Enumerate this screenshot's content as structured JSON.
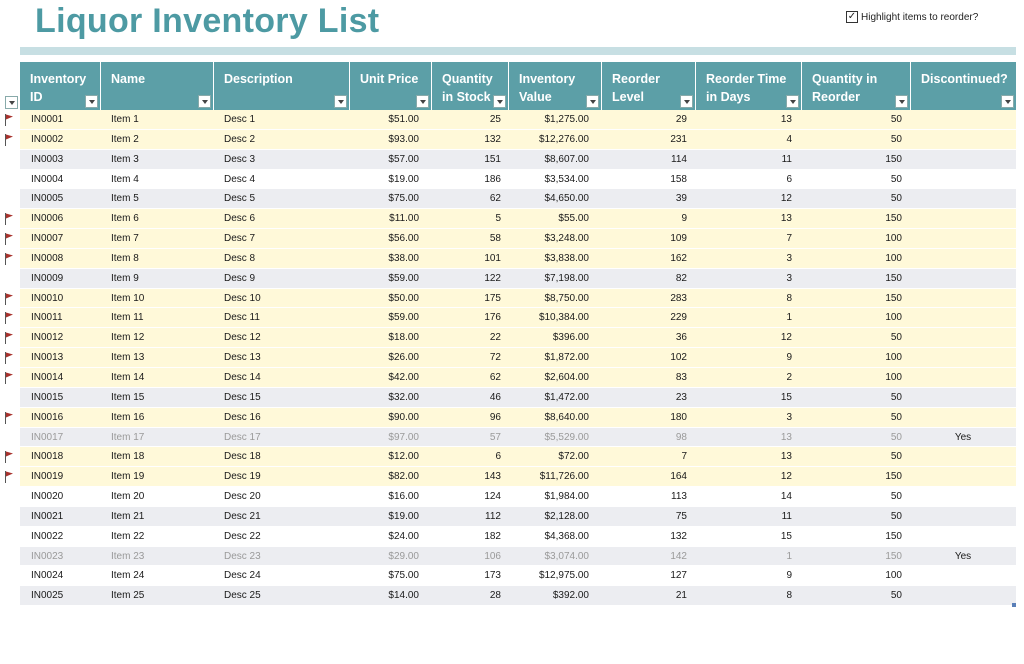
{
  "title": "Liquor Inventory List",
  "highlight": {
    "label": "Highlight items to reorder?",
    "checked": true
  },
  "columns": [
    {
      "key": "id",
      "label": "Inventory ID",
      "lines": [
        "Inventory",
        "ID"
      ]
    },
    {
      "key": "name",
      "label": "Name",
      "lines": [
        "Name"
      ]
    },
    {
      "key": "desc",
      "label": "Description",
      "lines": [
        "Description"
      ]
    },
    {
      "key": "price",
      "label": "Unit Price",
      "lines": [
        "Unit Price"
      ]
    },
    {
      "key": "qty",
      "label": "Quantity in Stock",
      "lines": [
        "Quantity",
        "in Stock"
      ]
    },
    {
      "key": "value",
      "label": "Inventory Value",
      "lines": [
        "Inventory",
        "Value"
      ]
    },
    {
      "key": "reorder",
      "label": "Reorder Level",
      "lines": [
        "Reorder",
        "Level"
      ]
    },
    {
      "key": "days",
      "label": "Reorder Time in Days",
      "lines": [
        "Reorder Time",
        "in Days"
      ]
    },
    {
      "key": "reorder_qty",
      "label": "Quantity in Reorder",
      "lines": [
        "Quantity in",
        "Reorder"
      ]
    },
    {
      "key": "disc",
      "label": "Discontinued?",
      "lines": [
        "Discontinued?"
      ]
    }
  ],
  "rows": [
    {
      "flag": true,
      "disc": false,
      "id": "IN0001",
      "name": "Item 1",
      "desc": "Desc 1",
      "price": "$51.00",
      "qty": "25",
      "value": "$1,275.00",
      "reorder": "29",
      "days": "13",
      "reorder_qty": "50",
      "discontinued": ""
    },
    {
      "flag": true,
      "disc": false,
      "id": "IN0002",
      "name": "Item 2",
      "desc": "Desc 2",
      "price": "$93.00",
      "qty": "132",
      "value": "$12,276.00",
      "reorder": "231",
      "days": "4",
      "reorder_qty": "50",
      "discontinued": ""
    },
    {
      "flag": false,
      "disc": false,
      "id": "IN0003",
      "name": "Item 3",
      "desc": "Desc 3",
      "price": "$57.00",
      "qty": "151",
      "value": "$8,607.00",
      "reorder": "114",
      "days": "11",
      "reorder_qty": "150",
      "discontinued": ""
    },
    {
      "flag": false,
      "disc": false,
      "id": "IN0004",
      "name": "Item 4",
      "desc": "Desc 4",
      "price": "$19.00",
      "qty": "186",
      "value": "$3,534.00",
      "reorder": "158",
      "days": "6",
      "reorder_qty": "50",
      "discontinued": ""
    },
    {
      "flag": false,
      "disc": false,
      "id": "IN0005",
      "name": "Item 5",
      "desc": "Desc 5",
      "price": "$75.00",
      "qty": "62",
      "value": "$4,650.00",
      "reorder": "39",
      "days": "12",
      "reorder_qty": "50",
      "discontinued": ""
    },
    {
      "flag": true,
      "disc": false,
      "id": "IN0006",
      "name": "Item 6",
      "desc": "Desc 6",
      "price": "$11.00",
      "qty": "5",
      "value": "$55.00",
      "reorder": "9",
      "days": "13",
      "reorder_qty": "150",
      "discontinued": ""
    },
    {
      "flag": true,
      "disc": false,
      "id": "IN0007",
      "name": "Item 7",
      "desc": "Desc 7",
      "price": "$56.00",
      "qty": "58",
      "value": "$3,248.00",
      "reorder": "109",
      "days": "7",
      "reorder_qty": "100",
      "discontinued": ""
    },
    {
      "flag": true,
      "disc": false,
      "id": "IN0008",
      "name": "Item 8",
      "desc": "Desc 8",
      "price": "$38.00",
      "qty": "101",
      "value": "$3,838.00",
      "reorder": "162",
      "days": "3",
      "reorder_qty": "100",
      "discontinued": ""
    },
    {
      "flag": false,
      "disc": false,
      "id": "IN0009",
      "name": "Item 9",
      "desc": "Desc 9",
      "price": "$59.00",
      "qty": "122",
      "value": "$7,198.00",
      "reorder": "82",
      "days": "3",
      "reorder_qty": "150",
      "discontinued": ""
    },
    {
      "flag": true,
      "disc": false,
      "id": "IN0010",
      "name": "Item 10",
      "desc": "Desc 10",
      "price": "$50.00",
      "qty": "175",
      "value": "$8,750.00",
      "reorder": "283",
      "days": "8",
      "reorder_qty": "150",
      "discontinued": ""
    },
    {
      "flag": true,
      "disc": false,
      "id": "IN0011",
      "name": "Item 11",
      "desc": "Desc 11",
      "price": "$59.00",
      "qty": "176",
      "value": "$10,384.00",
      "reorder": "229",
      "days": "1",
      "reorder_qty": "100",
      "discontinued": ""
    },
    {
      "flag": true,
      "disc": false,
      "id": "IN0012",
      "name": "Item 12",
      "desc": "Desc 12",
      "price": "$18.00",
      "qty": "22",
      "value": "$396.00",
      "reorder": "36",
      "days": "12",
      "reorder_qty": "50",
      "discontinued": ""
    },
    {
      "flag": true,
      "disc": false,
      "id": "IN0013",
      "name": "Item 13",
      "desc": "Desc 13",
      "price": "$26.00",
      "qty": "72",
      "value": "$1,872.00",
      "reorder": "102",
      "days": "9",
      "reorder_qty": "100",
      "discontinued": ""
    },
    {
      "flag": true,
      "disc": false,
      "id": "IN0014",
      "name": "Item 14",
      "desc": "Desc 14",
      "price": "$42.00",
      "qty": "62",
      "value": "$2,604.00",
      "reorder": "83",
      "days": "2",
      "reorder_qty": "100",
      "discontinued": ""
    },
    {
      "flag": false,
      "disc": false,
      "id": "IN0015",
      "name": "Item 15",
      "desc": "Desc 15",
      "price": "$32.00",
      "qty": "46",
      "value": "$1,472.00",
      "reorder": "23",
      "days": "15",
      "reorder_qty": "50",
      "discontinued": ""
    },
    {
      "flag": true,
      "disc": false,
      "id": "IN0016",
      "name": "Item 16",
      "desc": "Desc 16",
      "price": "$90.00",
      "qty": "96",
      "value": "$8,640.00",
      "reorder": "180",
      "days": "3",
      "reorder_qty": "50",
      "discontinued": ""
    },
    {
      "flag": false,
      "disc": true,
      "id": "IN0017",
      "name": "Item 17",
      "desc": "Desc 17",
      "price": "$97.00",
      "qty": "57",
      "value": "$5,529.00",
      "reorder": "98",
      "days": "13",
      "reorder_qty": "50",
      "discontinued": "Yes"
    },
    {
      "flag": true,
      "disc": false,
      "id": "IN0018",
      "name": "Item 18",
      "desc": "Desc 18",
      "price": "$12.00",
      "qty": "6",
      "value": "$72.00",
      "reorder": "7",
      "days": "13",
      "reorder_qty": "50",
      "discontinued": ""
    },
    {
      "flag": true,
      "disc": false,
      "id": "IN0019",
      "name": "Item 19",
      "desc": "Desc 19",
      "price": "$82.00",
      "qty": "143",
      "value": "$11,726.00",
      "reorder": "164",
      "days": "12",
      "reorder_qty": "150",
      "discontinued": ""
    },
    {
      "flag": false,
      "disc": false,
      "id": "IN0020",
      "name": "Item 20",
      "desc": "Desc 20",
      "price": "$16.00",
      "qty": "124",
      "value": "$1,984.00",
      "reorder": "113",
      "days": "14",
      "reorder_qty": "50",
      "discontinued": ""
    },
    {
      "flag": false,
      "disc": false,
      "id": "IN0021",
      "name": "Item 21",
      "desc": "Desc 21",
      "price": "$19.00",
      "qty": "112",
      "value": "$2,128.00",
      "reorder": "75",
      "days": "11",
      "reorder_qty": "50",
      "discontinued": ""
    },
    {
      "flag": false,
      "disc": false,
      "id": "IN0022",
      "name": "Item 22",
      "desc": "Desc 22",
      "price": "$24.00",
      "qty": "182",
      "value": "$4,368.00",
      "reorder": "132",
      "days": "15",
      "reorder_qty": "150",
      "discontinued": ""
    },
    {
      "flag": false,
      "disc": true,
      "id": "IN0023",
      "name": "Item 23",
      "desc": "Desc 23",
      "price": "$29.00",
      "qty": "106",
      "value": "$3,074.00",
      "reorder": "142",
      "days": "1",
      "reorder_qty": "150",
      "discontinued": "Yes"
    },
    {
      "flag": false,
      "disc": false,
      "id": "IN0024",
      "name": "Item 24",
      "desc": "Desc 24",
      "price": "$75.00",
      "qty": "173",
      "value": "$12,975.00",
      "reorder": "127",
      "days": "9",
      "reorder_qty": "100",
      "discontinued": ""
    },
    {
      "flag": false,
      "disc": false,
      "id": "IN0025",
      "name": "Item 25",
      "desc": "Desc 25",
      "price": "$14.00",
      "qty": "28",
      "value": "$392.00",
      "reorder": "21",
      "days": "8",
      "reorder_qty": "50",
      "discontinued": ""
    }
  ],
  "colors": {
    "header": "#5c9fa7",
    "title": "#4d9aa3",
    "flagged_row": "#fff9d9",
    "flag": "#a8322d"
  },
  "icons": {
    "flag": "flag-icon",
    "filter": "filter-dropdown-icon",
    "checkbox": "checkbox-checked-icon"
  }
}
